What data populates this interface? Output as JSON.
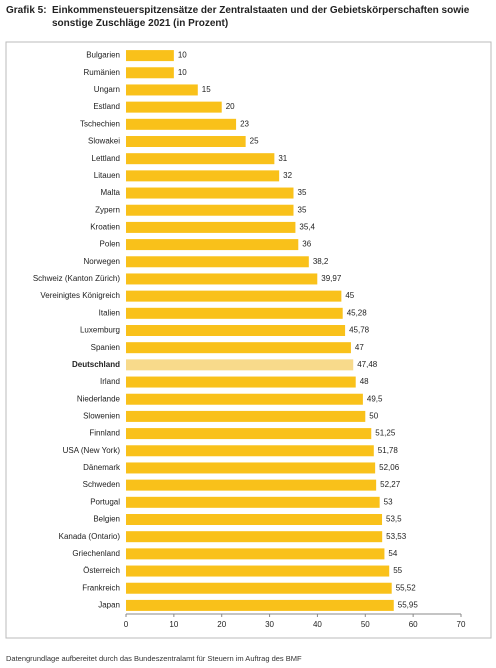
{
  "chart_data": {
    "type": "barh",
    "label": "Grafik 5:",
    "title": "Einkommensteuerspitzensätze der Zentralstaaten und der Gebietskörperschaften sowie sonstige Zuschläge 2021 (in Prozent)",
    "categories": [
      "Bulgarien",
      "Rumänien",
      "Ungarn",
      "Estland",
      "Tschechien",
      "Slowakei",
      "Lettland",
      "Litauen",
      "Malta",
      "Zypern",
      "Kroatien",
      "Polen",
      "Norwegen",
      "Schweiz (Kanton Zürich)",
      "Vereinigtes Königreich",
      "Italien",
      "Luxemburg",
      "Spanien",
      "Deutschland",
      "Irland",
      "Niederlande",
      "Slowenien",
      "Finnland",
      "USA (New York)",
      "Dänemark",
      "Schweden",
      "Portugal",
      "Belgien",
      "Kanada (Ontario)",
      "Griechenland",
      "Österreich",
      "Frankreich",
      "Japan"
    ],
    "values": [
      10,
      10,
      15,
      20,
      23,
      25,
      31,
      32,
      35,
      35,
      35.4,
      36,
      38.2,
      39.97,
      45,
      45.28,
      45.78,
      47,
      47.48,
      48,
      49.5,
      50,
      51.25,
      51.78,
      52.06,
      52.27,
      53,
      53.5,
      53.53,
      54,
      55,
      55.52,
      55.95
    ],
    "value_labels": [
      "10",
      "10",
      "15",
      "20",
      "23",
      "25",
      "31",
      "32",
      "35",
      "35",
      "35,4",
      "36",
      "38,2",
      "39,97",
      "45",
      "45,28",
      "45,78",
      "47",
      "47,48",
      "48",
      "49,5",
      "50",
      "51,25",
      "51,78",
      "52,06",
      "52,27",
      "53",
      "53,5",
      "53,53",
      "54",
      "55",
      "55,52",
      "55,95"
    ],
    "colors": [
      "#f9c11a",
      "#f9c11a",
      "#f9c11a",
      "#f9c11a",
      "#f9c11a",
      "#f9c11a",
      "#f9c11a",
      "#f9c11a",
      "#f9c11a",
      "#f9c11a",
      "#f9c11a",
      "#f9c11a",
      "#f9c11a",
      "#f9c11a",
      "#f9c11a",
      "#f9c11a",
      "#f9c11a",
      "#f9c11a",
      "#f8da8b",
      "#f9c11a",
      "#f9c11a",
      "#f9c11a",
      "#f9c11a",
      "#f9c11a",
      "#f9c11a",
      "#f9c11a",
      "#f9c11a",
      "#f9c11a",
      "#f9c11a",
      "#f9c11a",
      "#f9c11a",
      "#f9c11a",
      "#f9c11a"
    ],
    "xlim": [
      0,
      70
    ],
    "xticks": [
      0,
      10,
      20,
      30,
      40,
      50,
      60,
      70
    ],
    "source": "Datengrundlage aufbereitet durch das Bundeszentralamt für Steuern im Auftrag des BMF"
  }
}
